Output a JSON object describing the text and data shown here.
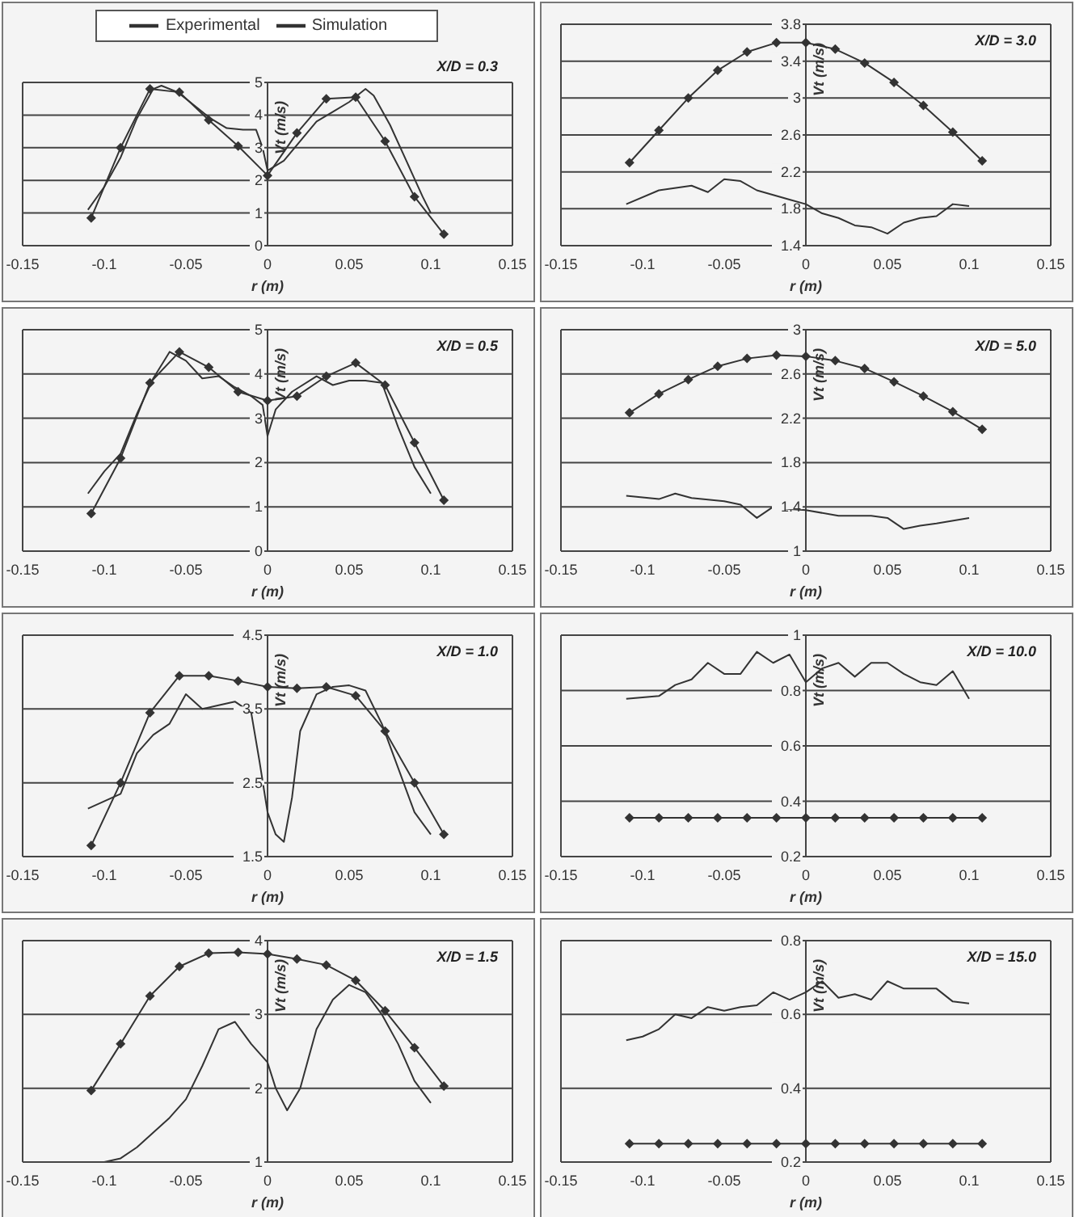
{
  "chart_data": [
    {
      "type": "line",
      "annotations": [
        "X/D = 0.3"
      ],
      "xlabel": "r (m)",
      "ylabel": "Vt (m/s)",
      "xlim": [
        -0.15,
        0.15
      ],
      "xticks": [
        -0.15,
        -0.1,
        -0.05,
        0,
        0.05,
        0.1,
        0.15
      ],
      "ylim": [
        0,
        5
      ],
      "yticks": [
        0,
        1,
        2,
        3,
        4,
        5
      ],
      "grid": "y",
      "legend": "top",
      "series": [
        {
          "name": "Experimental",
          "color": "#333333",
          "marker": "none",
          "x": [
            -0.11,
            -0.1,
            -0.09,
            -0.08,
            -0.07,
            -0.065,
            -0.055,
            -0.045,
            -0.035,
            -0.025,
            -0.015,
            -0.007,
            -0.003,
            0,
            0.01,
            0.02,
            0.03,
            0.04,
            0.05,
            0.06,
            0.065,
            0.075,
            0.085,
            0.095,
            0.1
          ],
          "values": [
            1.1,
            1.8,
            2.7,
            3.9,
            4.8,
            4.9,
            4.7,
            4.3,
            3.9,
            3.6,
            3.55,
            3.55,
            3.0,
            2.3,
            2.6,
            3.2,
            3.8,
            4.1,
            4.4,
            4.8,
            4.6,
            3.7,
            2.6,
            1.5,
            1.0
          ]
        },
        {
          "name": "Simulation",
          "color": "#333333",
          "marker": "diamond",
          "x": [
            -0.108,
            -0.09,
            -0.072,
            -0.054,
            -0.036,
            -0.018,
            0,
            0.018,
            0.036,
            0.054,
            0.072,
            0.09,
            0.108
          ],
          "values": [
            0.85,
            3.0,
            4.8,
            4.7,
            3.85,
            3.05,
            2.15,
            3.45,
            4.5,
            4.55,
            3.2,
            1.5,
            0.35
          ]
        }
      ]
    },
    {
      "type": "line",
      "annotations": [
        "X/D = 3.0"
      ],
      "xlabel": "r (m)",
      "ylabel": "Vt (m/s)",
      "xlim": [
        -0.15,
        0.15
      ],
      "xticks": [
        -0.15,
        -0.1,
        -0.05,
        0,
        0.05,
        0.1,
        0.15
      ],
      "ylim": [
        1.4,
        3.8
      ],
      "yticks": [
        1.4,
        1.8,
        2.2,
        2.6,
        3,
        3.4,
        3.8
      ],
      "grid": "y",
      "series": [
        {
          "color": "#333333",
          "marker": "none",
          "x": [
            -0.11,
            -0.09,
            -0.07,
            -0.06,
            -0.05,
            -0.04,
            -0.03,
            -0.02,
            -0.01,
            0,
            0.01,
            0.02,
            0.03,
            0.04,
            0.05,
            0.06,
            0.07,
            0.08,
            0.09,
            0.1
          ],
          "values": [
            1.85,
            2.0,
            2.05,
            1.98,
            2.12,
            2.1,
            2.0,
            1.95,
            1.9,
            1.85,
            1.75,
            1.7,
            1.62,
            1.6,
            1.53,
            1.65,
            1.7,
            1.72,
            1.85,
            1.83
          ]
        },
        {
          "color": "#333333",
          "marker": "diamond",
          "x": [
            -0.108,
            -0.09,
            -0.072,
            -0.054,
            -0.036,
            -0.018,
            0,
            0.018,
            0.036,
            0.054,
            0.072,
            0.09,
            0.108
          ],
          "values": [
            2.3,
            2.65,
            3.0,
            3.3,
            3.5,
            3.6,
            3.6,
            3.53,
            3.38,
            3.17,
            2.92,
            2.63,
            2.32
          ]
        }
      ]
    },
    {
      "type": "line",
      "annotations": [
        "X/D = 0.5"
      ],
      "xlabel": "r (m)",
      "ylabel": "Vt (m/s)",
      "xlim": [
        -0.15,
        0.15
      ],
      "xticks": [
        -0.15,
        -0.1,
        -0.05,
        0,
        0.05,
        0.1,
        0.15
      ],
      "ylim": [
        0,
        5
      ],
      "yticks": [
        0,
        1,
        2,
        3,
        4,
        5
      ],
      "grid": "y",
      "series": [
        {
          "color": "#333333",
          "marker": "none",
          "x": [
            -0.11,
            -0.1,
            -0.09,
            -0.08,
            -0.07,
            -0.06,
            -0.05,
            -0.04,
            -0.03,
            -0.02,
            -0.01,
            -0.003,
            0,
            0.005,
            0.015,
            0.03,
            0.04,
            0.05,
            0.06,
            0.07,
            0.08,
            0.09,
            0.1
          ],
          "values": [
            1.3,
            1.8,
            2.2,
            3.1,
            3.9,
            4.5,
            4.3,
            3.9,
            3.95,
            3.7,
            3.5,
            3.3,
            2.6,
            3.2,
            3.6,
            3.95,
            3.75,
            3.85,
            3.85,
            3.8,
            2.8,
            1.9,
            1.3
          ]
        },
        {
          "color": "#333333",
          "marker": "diamond",
          "x": [
            -0.108,
            -0.09,
            -0.072,
            -0.054,
            -0.036,
            -0.018,
            0,
            0.018,
            0.036,
            0.054,
            0.072,
            0.09,
            0.108
          ],
          "values": [
            0.85,
            2.1,
            3.8,
            4.5,
            4.15,
            3.6,
            3.4,
            3.5,
            3.95,
            4.25,
            3.75,
            2.45,
            1.15
          ]
        }
      ]
    },
    {
      "type": "line",
      "annotations": [
        "X/D = 5.0"
      ],
      "xlabel": "r (m)",
      "ylabel": "Vt (m/s)",
      "xlim": [
        -0.15,
        0.15
      ],
      "xticks": [
        -0.15,
        -0.1,
        -0.05,
        0,
        0.05,
        0.1,
        0.15
      ],
      "ylim": [
        1,
        3
      ],
      "yticks": [
        1,
        1.4,
        1.8,
        2.2,
        2.6,
        3
      ],
      "grid": "y",
      "series": [
        {
          "color": "#333333",
          "marker": "none",
          "x": [
            -0.11,
            -0.09,
            -0.08,
            -0.07,
            -0.05,
            -0.04,
            -0.03,
            -0.02,
            -0.01,
            0,
            0.02,
            0.04,
            0.05,
            0.06,
            0.07,
            0.08,
            0.1
          ],
          "values": [
            1.5,
            1.47,
            1.52,
            1.48,
            1.45,
            1.42,
            1.3,
            1.4,
            1.38,
            1.37,
            1.32,
            1.32,
            1.3,
            1.2,
            1.23,
            1.25,
            1.3
          ]
        },
        {
          "color": "#333333",
          "marker": "diamond",
          "x": [
            -0.108,
            -0.09,
            -0.072,
            -0.054,
            -0.036,
            -0.018,
            0,
            0.018,
            0.036,
            0.054,
            0.072,
            0.09,
            0.108
          ],
          "values": [
            2.25,
            2.42,
            2.55,
            2.67,
            2.74,
            2.77,
            2.76,
            2.72,
            2.65,
            2.53,
            2.4,
            2.26,
            2.1
          ]
        }
      ]
    },
    {
      "type": "line",
      "annotations": [
        "X/D = 1.0"
      ],
      "xlabel": "r (m)",
      "ylabel": "Vt (m/s)",
      "xlim": [
        -0.15,
        0.15
      ],
      "xticks": [
        -0.15,
        -0.1,
        -0.05,
        0,
        0.05,
        0.1,
        0.15
      ],
      "ylim": [
        1.5,
        4.5
      ],
      "yticks": [
        1.5,
        2.5,
        3.5,
        4.5
      ],
      "grid": "y",
      "series": [
        {
          "color": "#333333",
          "marker": "none",
          "x": [
            -0.11,
            -0.09,
            -0.08,
            -0.07,
            -0.06,
            -0.05,
            -0.04,
            -0.03,
            -0.02,
            -0.01,
            -0.005,
            0,
            0.005,
            0.01,
            0.015,
            0.02,
            0.03,
            0.04,
            0.05,
            0.06,
            0.07,
            0.08,
            0.09,
            0.1
          ],
          "values": [
            2.15,
            2.35,
            2.9,
            3.15,
            3.3,
            3.7,
            3.5,
            3.55,
            3.6,
            3.45,
            2.8,
            2.1,
            1.8,
            1.7,
            2.3,
            3.2,
            3.7,
            3.8,
            3.82,
            3.75,
            3.3,
            2.7,
            2.1,
            1.8
          ]
        },
        {
          "color": "#333333",
          "marker": "diamond",
          "x": [
            -0.108,
            -0.09,
            -0.072,
            -0.054,
            -0.036,
            -0.018,
            0,
            0.018,
            0.036,
            0.054,
            0.072,
            0.09,
            0.108
          ],
          "values": [
            1.65,
            2.5,
            3.45,
            3.95,
            3.95,
            3.88,
            3.8,
            3.78,
            3.8,
            3.68,
            3.2,
            2.5,
            1.8
          ]
        }
      ]
    },
    {
      "type": "line",
      "annotations": [
        "X/D = 10.0"
      ],
      "xlabel": "r (m)",
      "ylabel": "Vt (m/s)",
      "xlim": [
        -0.15,
        0.15
      ],
      "xticks": [
        -0.15,
        -0.1,
        -0.05,
        0,
        0.05,
        0.1,
        0.15
      ],
      "ylim": [
        0.2,
        1
      ],
      "yticks": [
        0.2,
        0.4,
        0.6,
        0.8,
        1
      ],
      "grid": "y",
      "series": [
        {
          "color": "#333333",
          "marker": "none",
          "x": [
            -0.11,
            -0.09,
            -0.08,
            -0.07,
            -0.06,
            -0.05,
            -0.04,
            -0.03,
            -0.02,
            -0.01,
            0,
            0.01,
            0.02,
            0.03,
            0.04,
            0.05,
            0.06,
            0.07,
            0.08,
            0.09,
            0.1
          ],
          "values": [
            0.77,
            0.78,
            0.82,
            0.84,
            0.9,
            0.86,
            0.86,
            0.94,
            0.9,
            0.93,
            0.83,
            0.88,
            0.9,
            0.85,
            0.9,
            0.9,
            0.86,
            0.83,
            0.82,
            0.87,
            0.77
          ]
        },
        {
          "color": "#333333",
          "marker": "diamond",
          "x": [
            -0.108,
            -0.09,
            -0.072,
            -0.054,
            -0.036,
            -0.018,
            0,
            0.018,
            0.036,
            0.054,
            0.072,
            0.09,
            0.108
          ],
          "values": [
            0.34,
            0.34,
            0.34,
            0.34,
            0.34,
            0.34,
            0.34,
            0.34,
            0.34,
            0.34,
            0.34,
            0.34,
            0.34
          ]
        }
      ]
    },
    {
      "type": "line",
      "annotations": [
        "X/D = 1.5"
      ],
      "xlabel": "r (m)",
      "ylabel": "Vt (m/s)",
      "xlim": [
        -0.15,
        0.15
      ],
      "xticks": [
        -0.15,
        -0.1,
        -0.05,
        0,
        0.05,
        0.1,
        0.15
      ],
      "ylim": [
        1,
        4
      ],
      "yticks": [
        1,
        2,
        3,
        4
      ],
      "grid": "y",
      "series": [
        {
          "color": "#333333",
          "marker": "none",
          "x": [
            -0.1,
            -0.09,
            -0.08,
            -0.07,
            -0.06,
            -0.05,
            -0.04,
            -0.03,
            -0.02,
            -0.01,
            0,
            0.005,
            0.012,
            0.02,
            0.03,
            0.04,
            0.05,
            0.06,
            0.07,
            0.08,
            0.09,
            0.1
          ],
          "values": [
            1.0,
            1.05,
            1.2,
            1.4,
            1.6,
            1.85,
            2.3,
            2.8,
            2.9,
            2.6,
            2.35,
            2.0,
            1.7,
            2.0,
            2.8,
            3.2,
            3.4,
            3.3,
            3.0,
            2.6,
            2.1,
            1.8
          ]
        },
        {
          "color": "#333333",
          "marker": "diamond",
          "x": [
            -0.108,
            -0.09,
            -0.072,
            -0.054,
            -0.036,
            -0.018,
            0,
            0.018,
            0.036,
            0.054,
            0.072,
            0.09,
            0.108
          ],
          "values": [
            1.97,
            2.6,
            3.25,
            3.65,
            3.83,
            3.84,
            3.82,
            3.75,
            3.67,
            3.46,
            3.05,
            2.55,
            2.03
          ]
        }
      ]
    },
    {
      "type": "line",
      "annotations": [
        "X/D = 15.0"
      ],
      "xlabel": "r (m)",
      "ylabel": "Vt (m/s)",
      "xlim": [
        -0.15,
        0.15
      ],
      "xticks": [
        -0.15,
        -0.1,
        -0.05,
        0,
        0.05,
        0.1,
        0.15
      ],
      "ylim": [
        0.2,
        0.8
      ],
      "yticks": [
        0.2,
        0.4,
        0.6,
        0.8
      ],
      "grid": "y",
      "series": [
        {
          "color": "#333333",
          "marker": "none",
          "x": [
            -0.11,
            -0.1,
            -0.09,
            -0.08,
            -0.07,
            -0.06,
            -0.05,
            -0.04,
            -0.03,
            -0.02,
            -0.01,
            0,
            0.01,
            0.02,
            0.03,
            0.04,
            0.05,
            0.06,
            0.07,
            0.08,
            0.09,
            0.1
          ],
          "values": [
            0.53,
            0.54,
            0.56,
            0.6,
            0.59,
            0.62,
            0.61,
            0.62,
            0.625,
            0.66,
            0.64,
            0.66,
            0.69,
            0.645,
            0.655,
            0.64,
            0.69,
            0.67,
            0.67,
            0.67,
            0.635,
            0.63
          ]
        },
        {
          "color": "#333333",
          "marker": "diamond",
          "x": [
            -0.108,
            -0.09,
            -0.072,
            -0.054,
            -0.036,
            -0.018,
            0,
            0.018,
            0.036,
            0.054,
            0.072,
            0.09,
            0.108
          ],
          "values": [
            0.25,
            0.25,
            0.25,
            0.25,
            0.25,
            0.25,
            0.25,
            0.25,
            0.25,
            0.25,
            0.25,
            0.25,
            0.25
          ]
        }
      ]
    }
  ]
}
